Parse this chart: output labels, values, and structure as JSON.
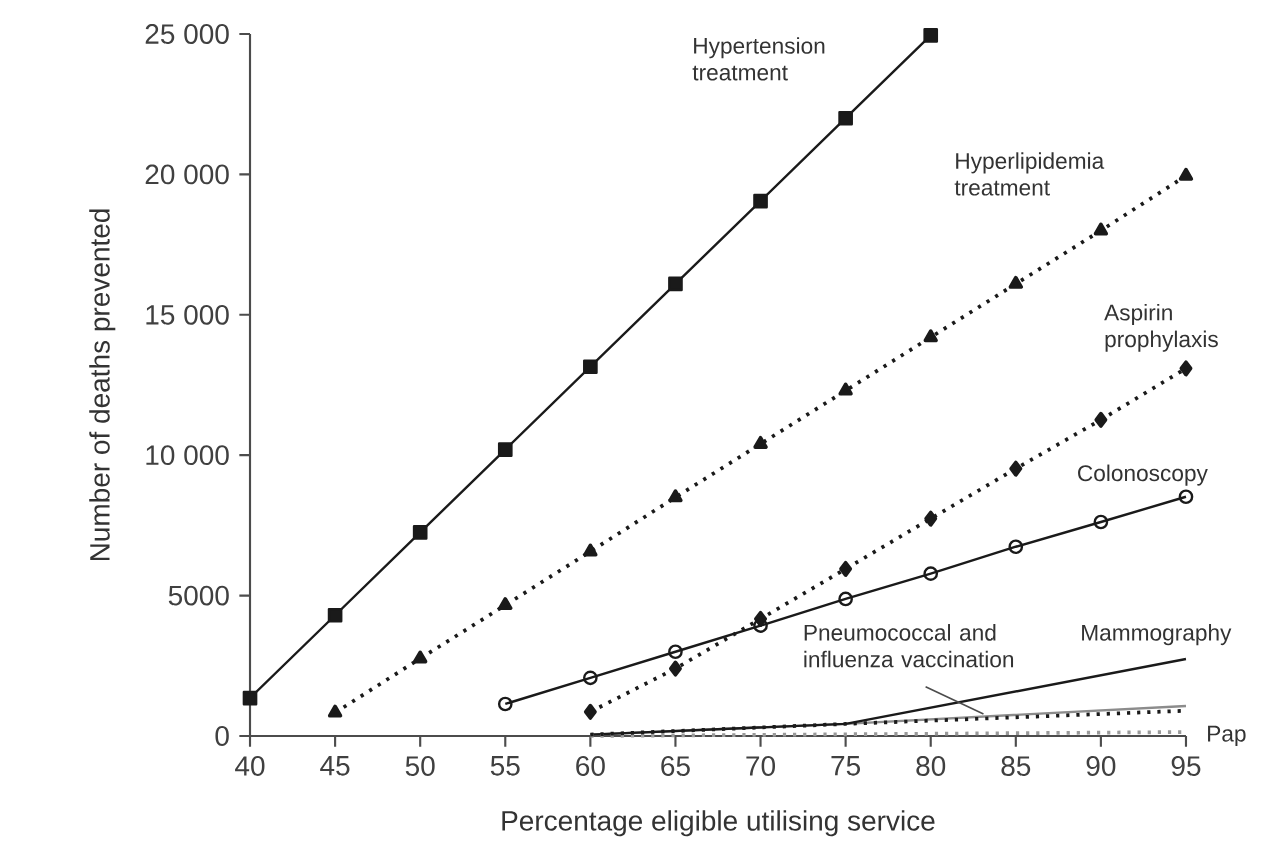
{
  "chart_data": {
    "type": "line",
    "xlabel": "Percentage eligible utilising service",
    "ylabel": "Number of deaths prevented",
    "xlim": [
      40,
      95
    ],
    "xticks": [
      40,
      45,
      50,
      55,
      60,
      65,
      70,
      75,
      80,
      85,
      90,
      95
    ],
    "ylim": [
      0,
      25000
    ],
    "yticks": [
      0,
      {
        "value": 5000,
        "label": "5000"
      },
      {
        "value": 10000,
        "label": "10 000"
      },
      {
        "value": 15000,
        "label": "15 000"
      },
      {
        "value": 20000,
        "label": "20 000"
      },
      {
        "value": 25000,
        "label": "25 000"
      }
    ],
    "grid": false,
    "legend": false,
    "series": [
      {
        "name": "Hypertension treatment",
        "color": "#1a1a1a",
        "marker": "square",
        "line_style": "solid",
        "x": [
          40,
          45,
          50,
          55,
          60,
          65,
          70,
          75,
          80
        ],
        "values": [
          1350,
          4300,
          7250,
          10200,
          13150,
          16100,
          19050,
          22000,
          24950
        ]
      },
      {
        "name": "Hyperlipidemia treatment",
        "color": "#1a1a1a",
        "marker": "triangle",
        "line_style": "dotted",
        "x": [
          45,
          50,
          55,
          60,
          65,
          70,
          75,
          80,
          85,
          90,
          95
        ],
        "values": [
          830,
          2760,
          4660,
          6570,
          8500,
          10400,
          12300,
          14200,
          16100,
          18000,
          19950
        ]
      },
      {
        "name": "Aspirin prophylaxis",
        "color": "#1a1a1a",
        "marker": "diamond",
        "line_style": "dotted",
        "x": [
          60,
          65,
          70,
          75,
          80,
          85,
          90,
          95
        ],
        "values": [
          860,
          2400,
          4170,
          5950,
          7740,
          9520,
          11260,
          13090
        ]
      },
      {
        "name": "Colonoscopy",
        "color": "#1a1a1a",
        "marker": "circle",
        "line_style": "solid",
        "x": [
          55,
          60,
          65,
          70,
          75,
          80,
          85,
          90,
          95
        ],
        "values": [
          1140,
          2070,
          3000,
          3930,
          4880,
          5780,
          6740,
          7620,
          8520
        ]
      },
      {
        "name": "Pneumococcal and influenza vaccination",
        "color": "#8c8c8c",
        "marker": "none",
        "line_style": "solid",
        "x": [
          60,
          75,
          95
        ],
        "values": [
          50,
          430,
          1070
        ]
      },
      {
        "name": "Mammography",
        "color": "#1a1a1a",
        "marker": "none",
        "line_style": "solid",
        "x": [
          60,
          75,
          95
        ],
        "values": [
          50,
          430,
          2740
        ]
      },
      {
        "name": "Pap",
        "color": "#9a9a9a",
        "marker": "none",
        "line_style": "dotted",
        "x": [
          60,
          95
        ],
        "values": [
          0,
          140
        ]
      },
      {
        "color": "#1a1a1a",
        "marker": "none",
        "line_style": "dotted",
        "x": [
          60,
          75,
          95
        ],
        "values": [
          50,
          430,
          900
        ]
      }
    ]
  }
}
